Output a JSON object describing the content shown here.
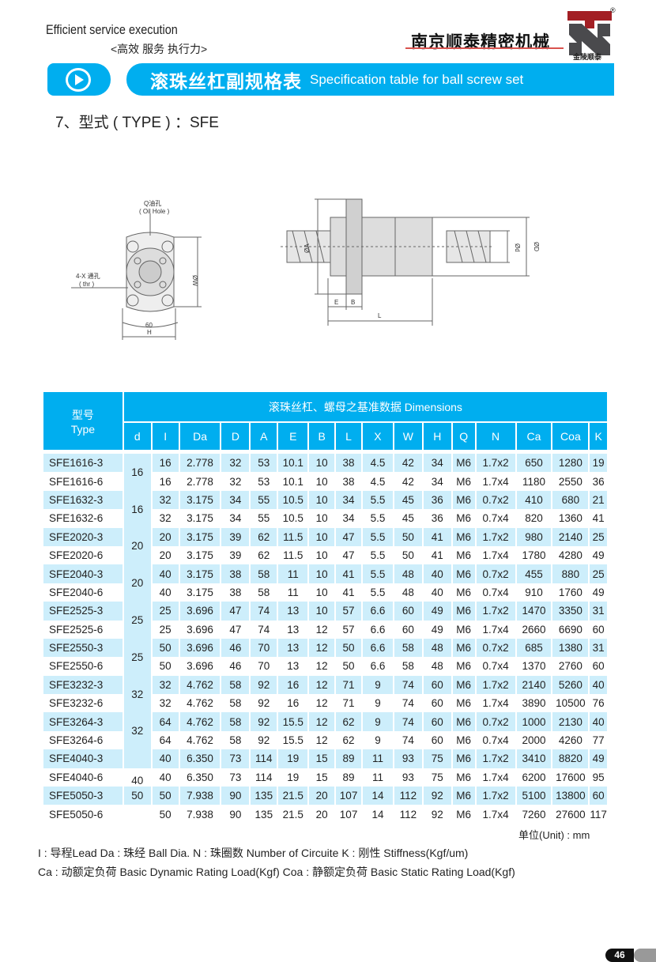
{
  "header": {
    "slogan_en": "Efficient service execution",
    "slogan_cn": "<高效  服务  执行力>",
    "company": "南京顺泰精密机械",
    "logo_sub": "金陵顺泰",
    "logo_reg": "®"
  },
  "banner": {
    "title_cn": "滚珠丝杠副规格表",
    "title_en": "Specification table for ball screw set",
    "accent": "#00aeef"
  },
  "type_title": "7、型式 ( TYPE ) ：SFE",
  "drawing": {
    "oil_hole_cn": "Q油孔",
    "oil_hole_en": "( Oil Hole )",
    "thru_cn": "4-X 通孔",
    "thru_en": "( thr )",
    "w": "ØW",
    "angle": "60",
    "h": "H",
    "a": "ØA",
    "d": "Ød",
    "D": "ØD",
    "e": "E",
    "b": "B",
    "l": "L"
  },
  "table": {
    "type_cn": "型号",
    "type_en": "Type",
    "group_header": "滚珠丝杠、螺母之基准数据 Dimensions",
    "columns": [
      "d",
      "I",
      "Da",
      "D",
      "A",
      "E",
      "B",
      "L",
      "X",
      "W",
      "H",
      "Q",
      "N",
      "Ca",
      "Coa",
      "K"
    ],
    "row_bg": "#cdeefb",
    "d_cells": [
      {
        "value": "16",
        "span": 2
      },
      {
        "value": "16",
        "span": 2
      },
      {
        "value": "20",
        "span": 2
      },
      {
        "value": "20",
        "span": 2
      },
      {
        "value": "25",
        "span": 2
      },
      {
        "value": "25",
        "span": 2
      },
      {
        "value": "32",
        "span": 2
      },
      {
        "value": "32",
        "span": 2
      },
      {
        "value": "",
        "span": 1
      },
      {
        "value": "40",
        "span": 1
      },
      {
        "value": "50",
        "span": 1
      },
      {
        "value": "",
        "span": 1
      }
    ],
    "rows": [
      [
        "SFE1616-3",
        "16",
        "2.778",
        "32",
        "53",
        "10.1",
        "10",
        "38",
        "4.5",
        "42",
        "34",
        "M6",
        "1.7x2",
        "650",
        "1280",
        "19"
      ],
      [
        "SFE1616-6",
        "16",
        "2.778",
        "32",
        "53",
        "10.1",
        "10",
        "38",
        "4.5",
        "42",
        "34",
        "M6",
        "1.7x4",
        "1180",
        "2550",
        "36"
      ],
      [
        "SFE1632-3",
        "32",
        "3.175",
        "34",
        "55",
        "10.5",
        "10",
        "34",
        "5.5",
        "45",
        "36",
        "M6",
        "0.7x2",
        "410",
        "680",
        "21"
      ],
      [
        "SFE1632-6",
        "32",
        "3.175",
        "34",
        "55",
        "10.5",
        "10",
        "34",
        "5.5",
        "45",
        "36",
        "M6",
        "0.7x4",
        "820",
        "1360",
        "41"
      ],
      [
        "SFE2020-3",
        "20",
        "3.175",
        "39",
        "62",
        "11.5",
        "10",
        "47",
        "5.5",
        "50",
        "41",
        "M6",
        "1.7x2",
        "980",
        "2140",
        "25"
      ],
      [
        "SFE2020-6",
        "20",
        "3.175",
        "39",
        "62",
        "11.5",
        "10",
        "47",
        "5.5",
        "50",
        "41",
        "M6",
        "1.7x4",
        "1780",
        "4280",
        "49"
      ],
      [
        "SFE2040-3",
        "40",
        "3.175",
        "38",
        "58",
        "11",
        "10",
        "41",
        "5.5",
        "48",
        "40",
        "M6",
        "0.7x2",
        "455",
        "880",
        "25"
      ],
      [
        "SFE2040-6",
        "40",
        "3.175",
        "38",
        "58",
        "11",
        "10",
        "41",
        "5.5",
        "48",
        "40",
        "M6",
        "0.7x4",
        "910",
        "1760",
        "49"
      ],
      [
        "SFE2525-3",
        "25",
        "3.696",
        "47",
        "74",
        "13",
        "10",
        "57",
        "6.6",
        "60",
        "49",
        "M6",
        "1.7x2",
        "1470",
        "3350",
        "31"
      ],
      [
        "SFE2525-6",
        "25",
        "3.696",
        "47",
        "74",
        "13",
        "12",
        "57",
        "6.6",
        "60",
        "49",
        "M6",
        "1.7x4",
        "2660",
        "6690",
        "60"
      ],
      [
        "SFE2550-3",
        "50",
        "3.696",
        "46",
        "70",
        "13",
        "12",
        "50",
        "6.6",
        "58",
        "48",
        "M6",
        "0.7x2",
        "685",
        "1380",
        "31"
      ],
      [
        "SFE2550-6",
        "50",
        "3.696",
        "46",
        "70",
        "13",
        "12",
        "50",
        "6.6",
        "58",
        "48",
        "M6",
        "0.7x4",
        "1370",
        "2760",
        "60"
      ],
      [
        "SFE3232-3",
        "32",
        "4.762",
        "58",
        "92",
        "16",
        "12",
        "71",
        "9",
        "74",
        "60",
        "M6",
        "1.7x2",
        "2140",
        "5260",
        "40"
      ],
      [
        "SFE3232-6",
        "32",
        "4.762",
        "58",
        "92",
        "16",
        "12",
        "71",
        "9",
        "74",
        "60",
        "M6",
        "1.7x4",
        "3890",
        "10500",
        "76"
      ],
      [
        "SFE3264-3",
        "64",
        "4.762",
        "58",
        "92",
        "15.5",
        "12",
        "62",
        "9",
        "74",
        "60",
        "M6",
        "0.7x2",
        "1000",
        "2130",
        "40"
      ],
      [
        "SFE3264-6",
        "64",
        "4.762",
        "58",
        "92",
        "15.5",
        "12",
        "62",
        "9",
        "74",
        "60",
        "M6",
        "0.7x4",
        "2000",
        "4260",
        "77"
      ],
      [
        "SFE4040-3",
        "40",
        "6.350",
        "73",
        "114",
        "19",
        "15",
        "89",
        "11",
        "93",
        "75",
        "M6",
        "1.7x2",
        "3410",
        "8820",
        "49"
      ],
      [
        "SFE4040-6",
        "40",
        "6.350",
        "73",
        "114",
        "19",
        "15",
        "89",
        "11",
        "93",
        "75",
        "M6",
        "1.7x4",
        "6200",
        "17600",
        "95"
      ],
      [
        "SFE5050-3",
        "50",
        "7.938",
        "90",
        "135",
        "21.5",
        "20",
        "107",
        "14",
        "112",
        "92",
        "M6",
        "1.7x2",
        "5100",
        "13800",
        "60"
      ],
      [
        "SFE5050-6",
        "50",
        "7.938",
        "90",
        "135",
        "21.5",
        "20",
        "107",
        "14",
        "112",
        "92",
        "M6",
        "1.7x4",
        "7260",
        "27600",
        "117"
      ]
    ]
  },
  "unit": "单位(Unit) : mm",
  "notes": [
    "I : 导程Lead  Da : 珠经 Ball Dia. N : 珠圈数 Number of Circuite  K : 刚性 Stiffness(Kgf/um)",
    "Ca : 动额定负荷 Basic Dynamic Rating Load(Kgf) Coa : 静额定负荷 Basic Static Rating Load(Kgf)"
  ],
  "page_number": "46"
}
